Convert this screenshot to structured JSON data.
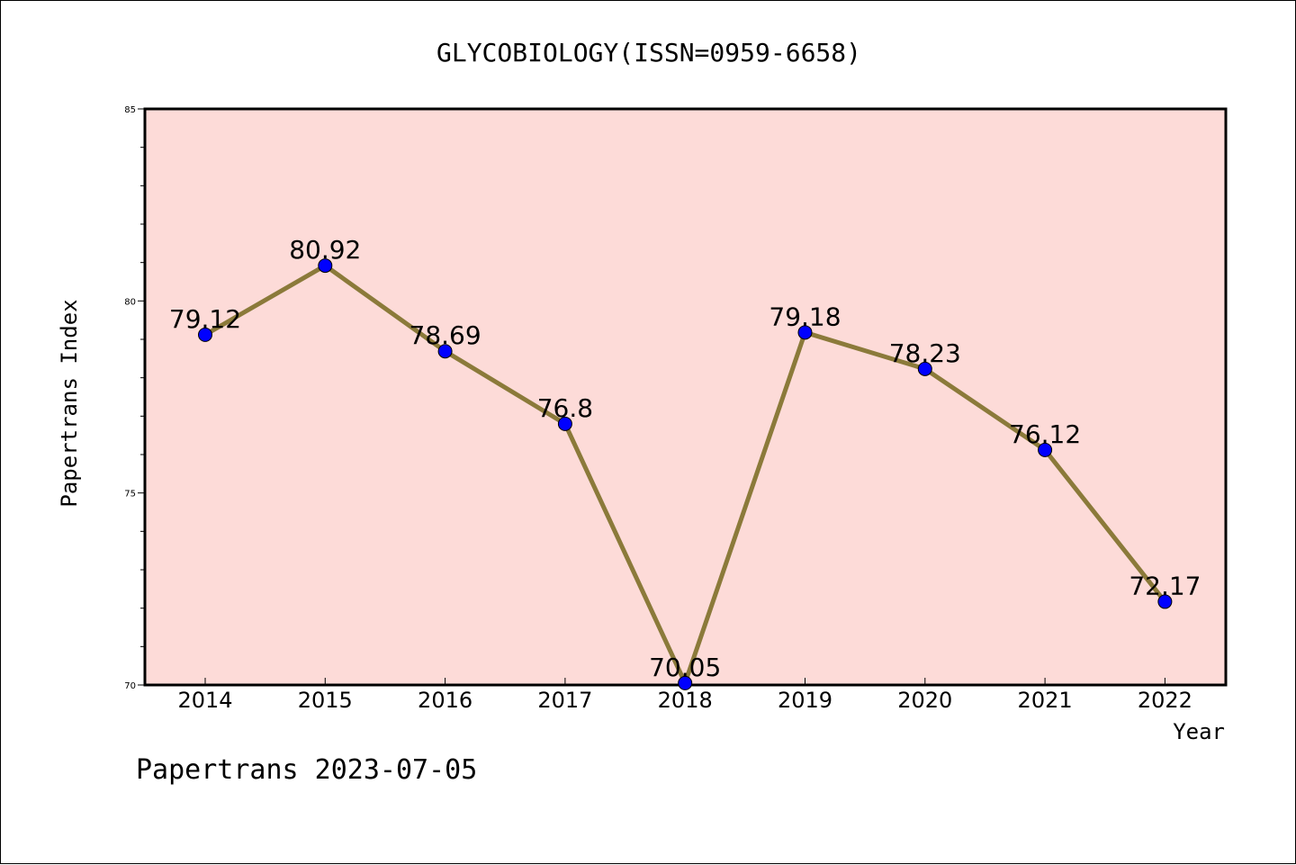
{
  "chart_data": {
    "type": "line",
    "title": "GLYCOBIOLOGY(ISSN=0959-6658)",
    "xlabel": "Year",
    "ylabel": "Papertrans Index",
    "categories": [
      "2014",
      "2015",
      "2016",
      "2017",
      "2018",
      "2019",
      "2020",
      "2021",
      "2022"
    ],
    "series": [
      {
        "values": [
          79.12,
          80.92,
          78.69,
          76.8,
          70.05,
          79.18,
          78.23,
          76.12,
          72.17
        ],
        "labels": [
          "79.12",
          "80.92",
          "78.69",
          "76.8",
          "70.05",
          "79.18",
          "78.23",
          "76.12",
          "72.17"
        ]
      }
    ],
    "ylim": [
      70,
      85
    ],
    "yticks": [
      "70",
      "75",
      "80",
      "85"
    ],
    "grid": false,
    "legend": "none",
    "colors": {
      "plot_background": "#fddbd8",
      "line": "#8b7a3a",
      "marker": "#0000ff"
    }
  },
  "footer": {
    "text": "Papertrans 2023-07-05"
  }
}
